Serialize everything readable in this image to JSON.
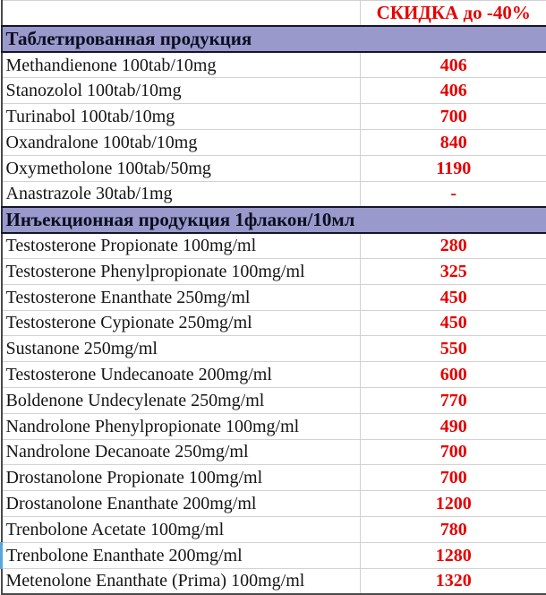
{
  "table": {
    "columns": {
      "product": "",
      "discount": "СКИДКА до -40%"
    },
    "colors": {
      "accent_red": "#e60000",
      "section_bg": "#9999cc",
      "gridline": "#d2d2d2",
      "outer_border": "#4a4a4a"
    },
    "sections": [
      {
        "title": "Таблетированная продукция",
        "rows": [
          {
            "name": "Methandienone 100tab/10mg",
            "price": "406"
          },
          {
            "name": "Stanozolol 100tab/10mg",
            "price": "406"
          },
          {
            "name": "Turinabol 100tab/10mg",
            "price": "700"
          },
          {
            "name": "Oxandralone 100tab/10mg",
            "price": "840"
          },
          {
            "name": "Oxymetholone 100tab/50mg",
            "price": "1190"
          },
          {
            "name": "Anastrazole 30tab/1mg",
            "price": "-"
          }
        ]
      },
      {
        "title": "Инъекционная продукция 1флакон/10мл",
        "rows": [
          {
            "name": "Testosterone Propionate 100mg/ml",
            "price": "280"
          },
          {
            "name": "Testosterone Phenylpropionate 100mg/ml",
            "price": "325"
          },
          {
            "name": "Testosterone Enanthate 250mg/ml",
            "price": "450"
          },
          {
            "name": "Testosterone Cypionate 250mg/ml",
            "price": "450"
          },
          {
            "name": "Sustanone 250mg/ml",
            "price": "550"
          },
          {
            "name": "Testosterone Undecanoate 200mg/ml",
            "price": "600"
          },
          {
            "name": "Boldenone Undecylenate 250mg/ml",
            "price": "770"
          },
          {
            "name": "Nandrolone Phenylpropionate 100mg/ml",
            "price": "490"
          },
          {
            "name": "Nandrolone Decanoate 250mg/ml",
            "price": "700"
          },
          {
            "name": "Drostanolone Propionate 100mg/ml",
            "price": "700"
          },
          {
            "name": "Drostanolone Enanthate 200mg/ml",
            "price": "1200"
          },
          {
            "name": "Trenbolone Acetate 100mg/ml",
            "price": "780"
          },
          {
            "name": "Trenbolone Enanthate 200mg/ml",
            "price": "1280"
          },
          {
            "name": "Metenolone Enanthate (Prima) 100mg/ml",
            "price": "1320"
          }
        ]
      }
    ]
  }
}
